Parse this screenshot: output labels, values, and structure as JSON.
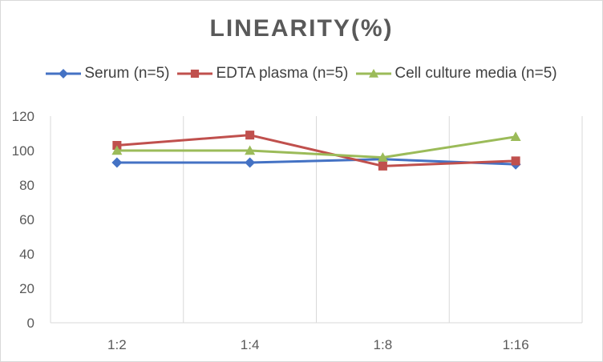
{
  "chart_data": {
    "type": "line",
    "title": "LINEARITY(%)",
    "xlabel": "",
    "ylabel": "",
    "categories": [
      "1:2",
      "1:4",
      "1:8",
      "1:16"
    ],
    "ylim": [
      0,
      120
    ],
    "yticks": [
      0,
      20,
      40,
      60,
      80,
      100,
      120
    ],
    "grid": "vertical",
    "legend": "top",
    "series": [
      {
        "name": "Serum (n=5)",
        "values": [
          93,
          93,
          95,
          92
        ],
        "color": "#4472c4",
        "marker": "diamond"
      },
      {
        "name": "EDTA plasma (n=5)",
        "values": [
          103,
          109,
          91,
          94
        ],
        "color": "#c0504d",
        "marker": "square"
      },
      {
        "name": "Cell culture media (n=5)",
        "values": [
          100,
          100,
          96,
          108
        ],
        "color": "#9bbb59",
        "marker": "triangle"
      }
    ]
  }
}
